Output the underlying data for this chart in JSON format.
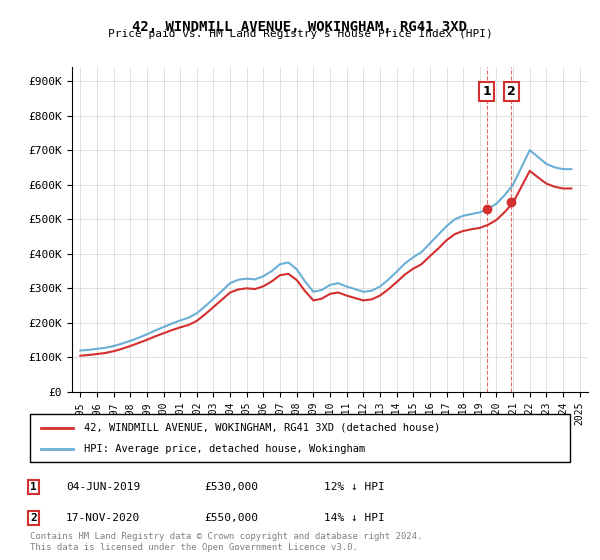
{
  "title": "42, WINDMILL AVENUE, WOKINGHAM, RG41 3XD",
  "subtitle": "Price paid vs. HM Land Registry's House Price Index (HPI)",
  "ylabel_ticks": [
    "£0",
    "£100K",
    "£200K",
    "£300K",
    "£400K",
    "£500K",
    "£600K",
    "£700K",
    "£800K",
    "£900K"
  ],
  "ytick_values": [
    0,
    100000,
    200000,
    300000,
    400000,
    500000,
    600000,
    700000,
    800000,
    900000
  ],
  "ylim": [
    0,
    940000
  ],
  "sale1_date": "04-JUN-2019",
  "sale1_price": 530000,
  "sale1_label": "12% ↓ HPI",
  "sale2_date": "17-NOV-2020",
  "sale2_price": 550000,
  "sale2_label": "14% ↓ HPI",
  "sale1_x": 2019.42,
  "sale2_x": 2020.88,
  "legend_label1": "42, WINDMILL AVENUE, WOKINGHAM, RG41 3XD (detached house)",
  "legend_label2": "HPI: Average price, detached house, Wokingham",
  "footnote": "Contains HM Land Registry data © Crown copyright and database right 2024.\nThis data is licensed under the Open Government Licence v3.0.",
  "hpi_color": "#6baed6",
  "price_color": "#d32f2f",
  "sale_marker_color": "#d32f2f",
  "vline_color": "#d32f2f",
  "box1_color": "#d32f2f",
  "hpi_data_x": [
    1995,
    1995.5,
    1996,
    1996.5,
    1997,
    1997.5,
    1998,
    1998.5,
    1999,
    1999.5,
    2000,
    2000.5,
    2001,
    2001.5,
    2002,
    2002.5,
    2003,
    2003.5,
    2004,
    2004.5,
    2005,
    2005.5,
    2006,
    2006.5,
    2007,
    2007.5,
    2008,
    2008.5,
    2009,
    2009.5,
    2010,
    2010.5,
    2011,
    2011.5,
    2012,
    2012.5,
    2013,
    2013.5,
    2014,
    2014.5,
    2015,
    2015.5,
    2016,
    2016.5,
    2017,
    2017.5,
    2018,
    2018.5,
    2019,
    2019.5,
    2020,
    2020.5,
    2021,
    2021.5,
    2022,
    2022.5,
    2023,
    2023.5,
    2024,
    2024.5
  ],
  "hpi_data_y": [
    120000,
    122000,
    125000,
    128000,
    133000,
    140000,
    148000,
    157000,
    167000,
    178000,
    188000,
    198000,
    207000,
    215000,
    228000,
    248000,
    270000,
    292000,
    315000,
    325000,
    328000,
    326000,
    335000,
    350000,
    370000,
    375000,
    355000,
    320000,
    290000,
    295000,
    310000,
    315000,
    305000,
    298000,
    290000,
    293000,
    305000,
    325000,
    348000,
    372000,
    390000,
    405000,
    430000,
    455000,
    480000,
    500000,
    510000,
    515000,
    520000,
    530000,
    545000,
    570000,
    600000,
    650000,
    700000,
    680000,
    660000,
    650000,
    645000,
    645000
  ],
  "price_data_x": [
    1995,
    1995.5,
    1996,
    1996.5,
    1997,
    1997.5,
    1998,
    1998.5,
    1999,
    1999.5,
    2000,
    2000.5,
    2001,
    2001.5,
    2002,
    2002.5,
    2003,
    2003.5,
    2004,
    2004.5,
    2005,
    2005.5,
    2006,
    2006.5,
    2007,
    2007.5,
    2008,
    2008.5,
    2009,
    2009.5,
    2010,
    2010.5,
    2011,
    2011.5,
    2012,
    2012.5,
    2013,
    2013.5,
    2014,
    2014.5,
    2015,
    2015.5,
    2016,
    2016.5,
    2017,
    2017.5,
    2018,
    2018.5,
    2019,
    2019.5,
    2020,
    2020.5,
    2021,
    2021.5,
    2022,
    2022.5,
    2023,
    2023.5,
    2024,
    2024.5
  ],
  "price_data_y": [
    105000,
    107000,
    110000,
    113000,
    118000,
    125000,
    133000,
    142000,
    151000,
    161000,
    170000,
    179000,
    187000,
    194000,
    206000,
    225000,
    246000,
    267000,
    288000,
    297000,
    300000,
    298000,
    306000,
    320000,
    338000,
    342000,
    324000,
    292000,
    265000,
    270000,
    284000,
    288000,
    279000,
    272000,
    265000,
    268000,
    279000,
    297000,
    318000,
    340000,
    357000,
    370000,
    393000,
    415000,
    439000,
    457000,
    466000,
    471000,
    475000,
    484000,
    498000,
    521000,
    548000,
    594000,
    640000,
    621000,
    603000,
    594000,
    589000,
    589000
  ],
  "xtick_years": [
    "1995",
    "1996",
    "1997",
    "1998",
    "1999",
    "2000",
    "2001",
    "2002",
    "2003",
    "2004",
    "2005",
    "2006",
    "2007",
    "2008",
    "2009",
    "2010",
    "2011",
    "2012",
    "2013",
    "2014",
    "2015",
    "2016",
    "2017",
    "2018",
    "2019",
    "2020",
    "2021",
    "2022",
    "2023",
    "2024",
    "2025"
  ],
  "xtick_positions": [
    1995,
    1996,
    1997,
    1998,
    1999,
    2000,
    2001,
    2002,
    2003,
    2004,
    2005,
    2006,
    2007,
    2008,
    2009,
    2010,
    2011,
    2012,
    2013,
    2014,
    2015,
    2016,
    2017,
    2018,
    2019,
    2020,
    2021,
    2022,
    2023,
    2024,
    2025
  ],
  "xlim": [
    1994.5,
    2025.5
  ]
}
